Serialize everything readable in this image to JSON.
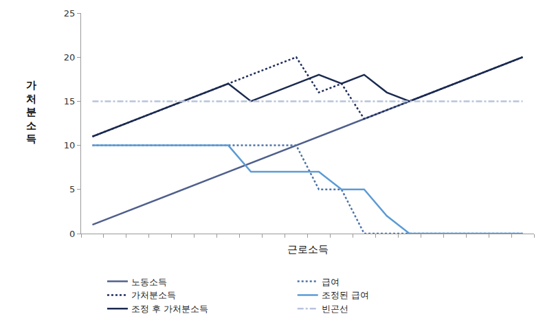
{
  "chart_data": {
    "type": "line",
    "x_label": "근로소득",
    "y_label": "가처분소득",
    "x": [
      0,
      1,
      2,
      3,
      4,
      5,
      6,
      7,
      8,
      9,
      10,
      11,
      12,
      13,
      14,
      15,
      16,
      17,
      18,
      19
    ],
    "xlim": [
      -0.5,
      19.5
    ],
    "xticks": [
      -0.5,
      0.5,
      1.5,
      2.5,
      3.5,
      4.5,
      5.5,
      6.5,
      7.5,
      8.5,
      9.5,
      10.5,
      11.5,
      12.5,
      13.5,
      14.5,
      15.5,
      16.5,
      17.5,
      18.5,
      19.5
    ],
    "ylim": [
      0,
      25
    ],
    "yticks": [
      0,
      5,
      10,
      15,
      20,
      25
    ],
    "tick_labels": "y",
    "grid": false,
    "legend": "bottom",
    "series": [
      {
        "name": "노동소득",
        "color": "#4f5f8c",
        "line_style": "solid",
        "values": [
          1,
          2,
          3,
          4,
          5,
          6,
          7,
          8,
          9,
          10,
          11,
          12,
          13,
          14,
          15,
          16,
          17,
          18,
          19,
          20
        ]
      },
      {
        "name": "급여",
        "color": "#4a72a8",
        "line_style": "dot",
        "values": [
          10,
          10,
          10,
          10,
          10,
          10,
          10,
          10,
          10,
          10,
          5,
          5,
          0,
          0,
          0,
          0,
          0,
          0,
          0,
          0
        ]
      },
      {
        "name": "가처분소득",
        "color": "#1f2d5c",
        "line_style": "dot",
        "values": [
          11,
          12,
          13,
          14,
          15,
          16,
          17,
          18,
          19,
          20,
          16,
          17,
          13,
          14,
          15,
          16,
          17,
          18,
          19,
          20
        ]
      },
      {
        "name": "조정된 급여",
        "color": "#5b9bd5",
        "line_style": "solid",
        "values": [
          10,
          10,
          10,
          10,
          10,
          10,
          10,
          7,
          7,
          7,
          7,
          5,
          5,
          2,
          0,
          0,
          0,
          0,
          0,
          0
        ]
      },
      {
        "name": "조정 후 가처분소득",
        "color": "#1b2a50",
        "line_style": "solid",
        "values": [
          11,
          12,
          13,
          14,
          15,
          16,
          17,
          15,
          16,
          17,
          18,
          17,
          18,
          16,
          15,
          16,
          17,
          18,
          19,
          20
        ]
      },
      {
        "name": "빈곤선",
        "color": "#b8c4dc",
        "line_style": "dashdot",
        "values": [
          15,
          15,
          15,
          15,
          15,
          15,
          15,
          15,
          15,
          15,
          15,
          15,
          15,
          15,
          15,
          15,
          15,
          15,
          15,
          15
        ]
      }
    ]
  }
}
